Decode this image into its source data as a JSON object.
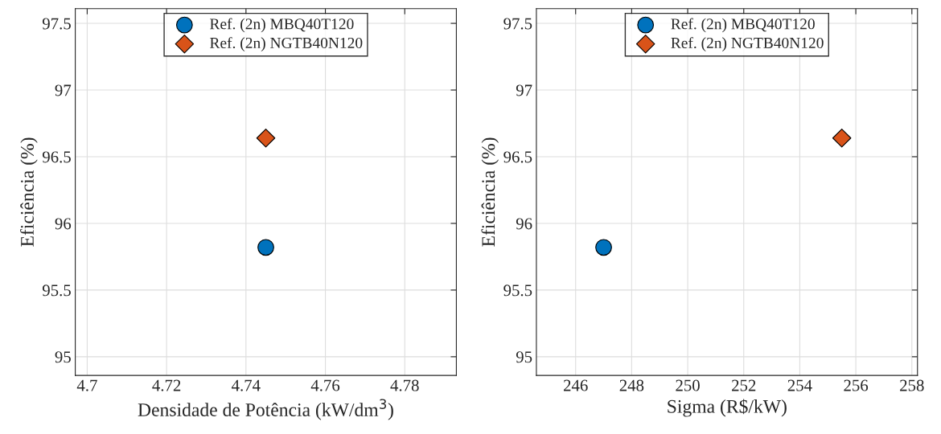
{
  "chart_data": [
    {
      "type": "scatter",
      "xlabel": "Densidade de Potência (kW/dm$^{3}$)",
      "ylabel": "Eficiência (%)",
      "xlim": [
        4.697,
        4.793
      ],
      "xticks": [
        4.7,
        4.72,
        4.74,
        4.76,
        4.78
      ],
      "ylim": [
        94.86,
        97.61
      ],
      "yticks": [
        95,
        95.5,
        96,
        96.5,
        97,
        97.5
      ],
      "grid": true,
      "legend": "top",
      "series": [
        {
          "name": "Ref. (2n) MBQ40T120",
          "color": "#0072bd",
          "marker": "circle",
          "x": [
            4.745
          ],
          "values": [
            95.82
          ]
        },
        {
          "name": "Ref. (2n) NGTB40N120",
          "color": "#d95319",
          "marker": "diamond",
          "x": [
            4.745
          ],
          "values": [
            96.64
          ]
        }
      ]
    },
    {
      "type": "scatter",
      "xlabel": "Sigma (R$/kW)",
      "ylabel": "Eficiência (%)",
      "xlim": [
        244.6,
        258.2
      ],
      "xticks": [
        246,
        248,
        250,
        252,
        254,
        256,
        258
      ],
      "ylim": [
        94.86,
        97.61
      ],
      "yticks": [
        95,
        95.5,
        96,
        96.5,
        97,
        97.5
      ],
      "grid": true,
      "legend": "top",
      "series": [
        {
          "name": "Ref. (2n) MBQ40T120",
          "color": "#0072bd",
          "marker": "circle",
          "x": [
            247
          ],
          "values": [
            95.82
          ]
        },
        {
          "name": "Ref. (2n) NGTB40N120",
          "color": "#d95319",
          "marker": "diamond",
          "x": [
            255.5
          ],
          "values": [
            96.64
          ]
        }
      ]
    }
  ]
}
